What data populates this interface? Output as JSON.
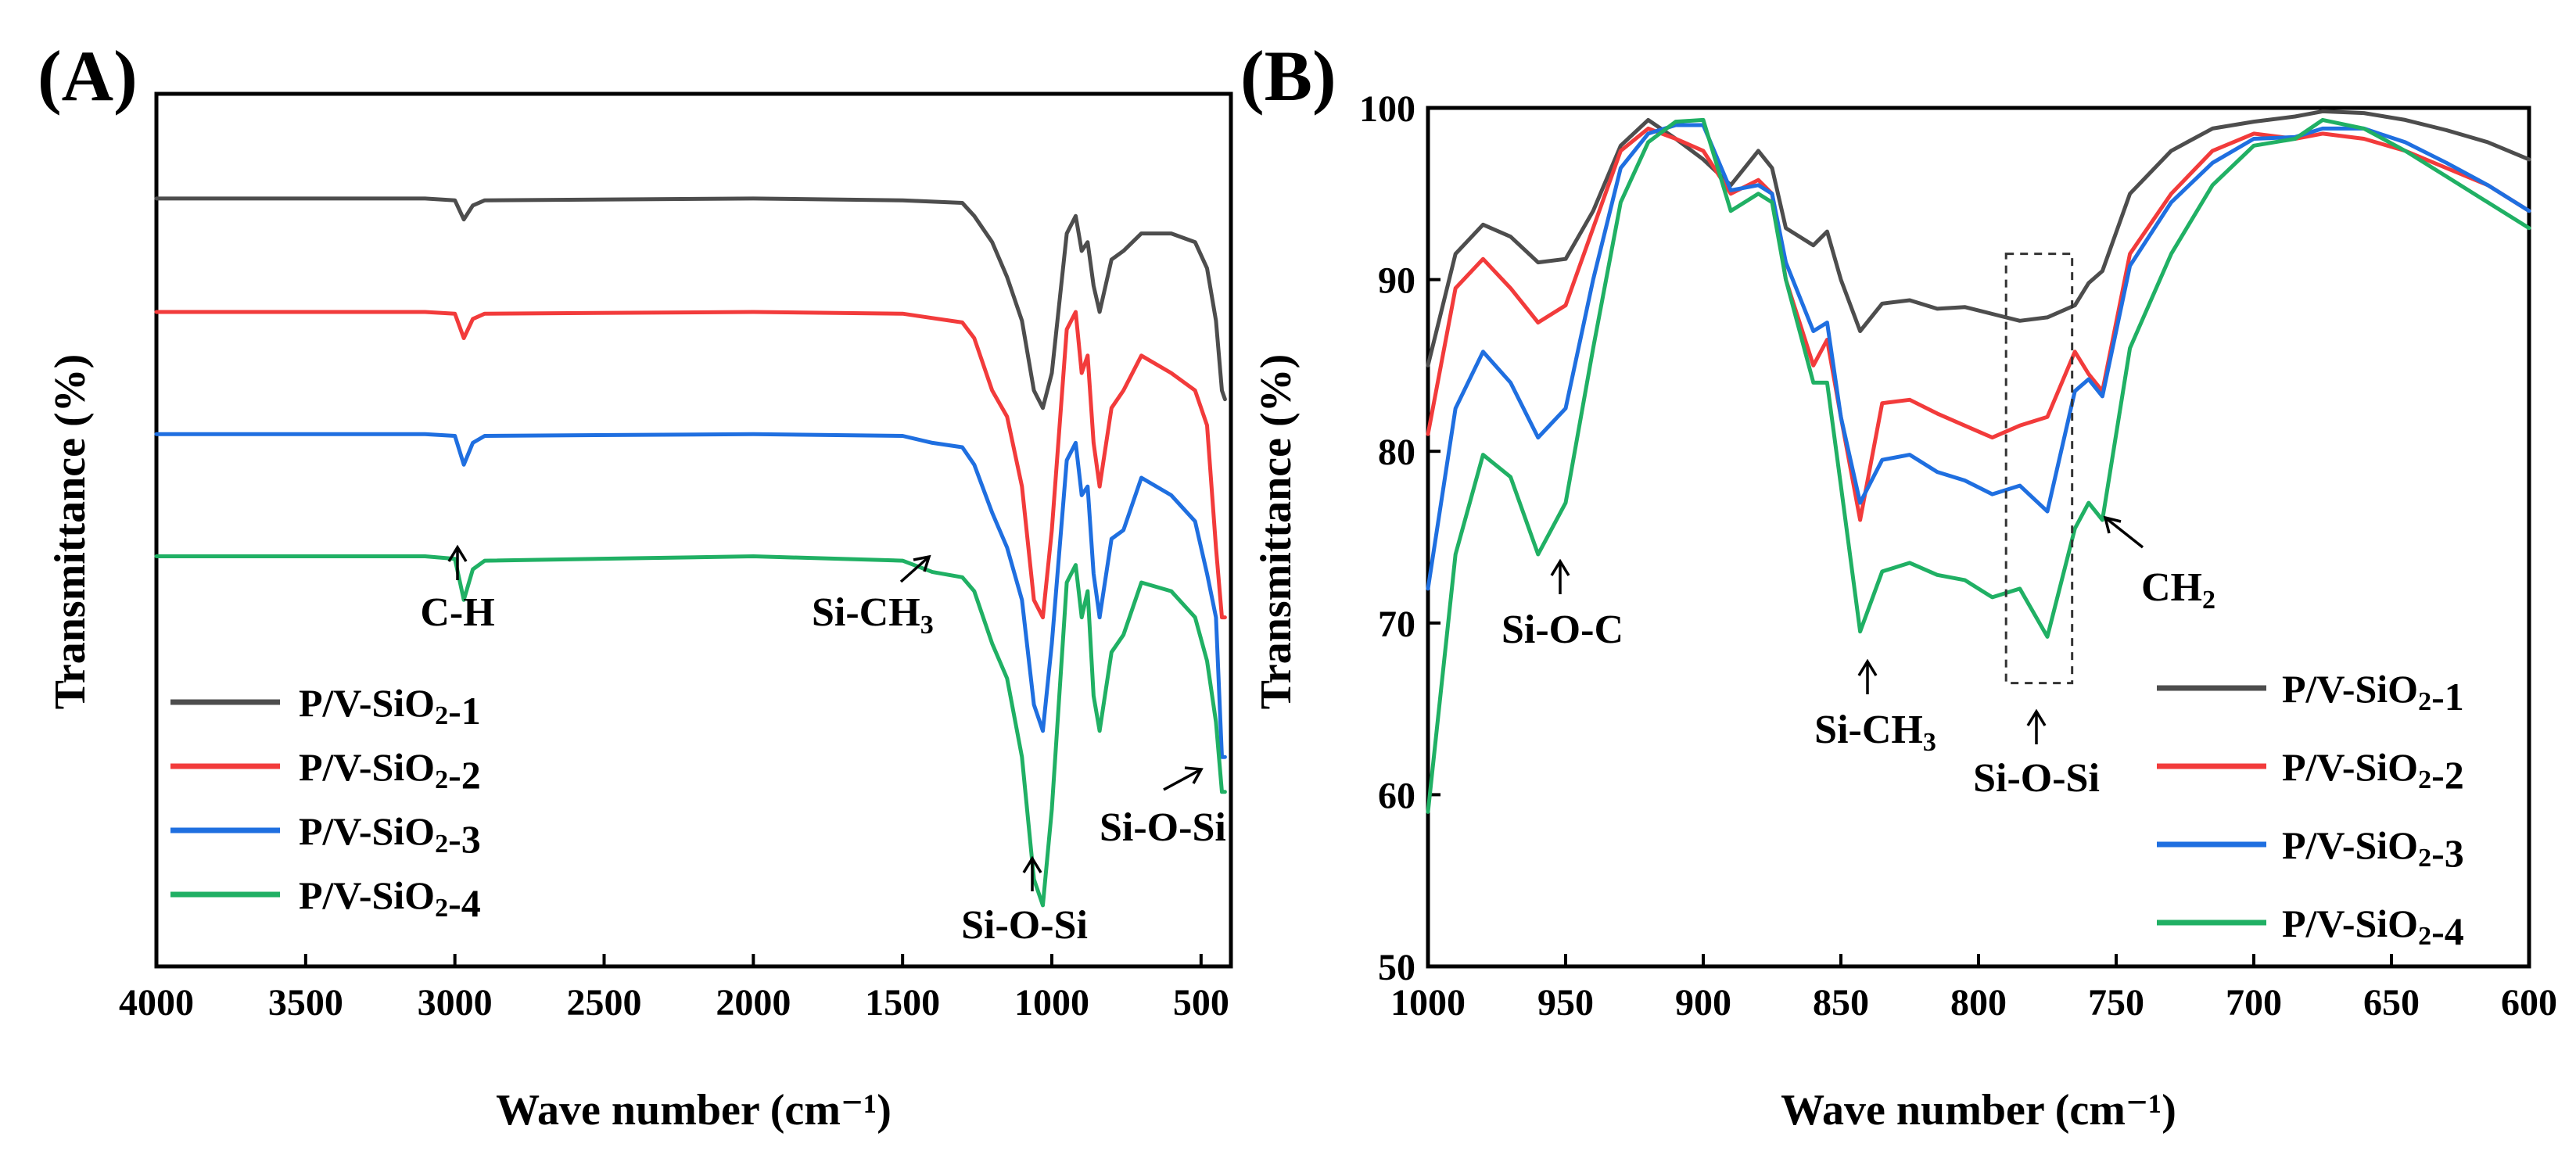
{
  "colors": {
    "P/V-SiO2-1": "#4d4d4d",
    "P/V-SiO2-2": "#f23b3b",
    "P/V-SiO2-3": "#1f6fe0",
    "P/V-SiO2-4": "#20b064"
  },
  "chart_data": [
    {
      "panel": "(A)",
      "type": "line",
      "title": "",
      "xlabel": "Wave number (cm⁻¹)",
      "ylabel": "Transmittance (%)",
      "xlim": [
        4000,
        400
      ],
      "xticks": [
        4000,
        3500,
        3000,
        2500,
        2000,
        1500,
        1000,
        500
      ],
      "yticks": [],
      "ylim": [
        0,
        100
      ],
      "legend": [
        "P/V-SiO2-1",
        "P/V-SiO2-2",
        "P/V-SiO2-3",
        "P/V-SiO2-4"
      ],
      "legend_position": "bottom-left",
      "annotations": [
        {
          "text": "C-H",
          "x": 2970
        },
        {
          "text": "Si-CH3",
          "x": 1400
        },
        {
          "text": "Si-O-Si",
          "x": 1030
        },
        {
          "text": "Si-O-Si",
          "x": 450
        }
      ],
      "series": [
        {
          "name": "P/V-SiO2-1",
          "x": [
            4000,
            3100,
            3000,
            2970,
            2940,
            2900,
            2000,
            1500,
            1300,
            1260,
            1200,
            1150,
            1100,
            1060,
            1030,
            1000,
            950,
            920,
            900,
            880,
            860,
            840,
            800,
            760,
            700,
            600,
            520,
            480,
            450,
            430,
            420
          ],
          "y": [
            88,
            88,
            87.8,
            85.6,
            87.2,
            87.8,
            88,
            87.8,
            87.5,
            86,
            83,
            79,
            74,
            66,
            64,
            68,
            84,
            86,
            82,
            83,
            78,
            75,
            81,
            82,
            84,
            84,
            83,
            80,
            74,
            66,
            65
          ]
        },
        {
          "name": "P/V-SiO2-2",
          "x": [
            4000,
            3100,
            3000,
            2970,
            2940,
            2900,
            2000,
            1500,
            1400,
            1300,
            1260,
            1200,
            1150,
            1100,
            1060,
            1030,
            1000,
            950,
            920,
            900,
            880,
            860,
            840,
            800,
            760,
            700,
            600,
            520,
            480,
            450,
            430,
            420
          ],
          "y": [
            75,
            75,
            74.8,
            72,
            74.2,
            74.8,
            75,
            74.8,
            74.3,
            73.8,
            72,
            66,
            63,
            55,
            42,
            40,
            50,
            73,
            75,
            68,
            70,
            60,
            55,
            64,
            66,
            70,
            68,
            66,
            62,
            48,
            40,
            40
          ]
        },
        {
          "name": "P/V-SiO2-3",
          "x": [
            4000,
            3100,
            3000,
            2970,
            2940,
            2900,
            2000,
            1500,
            1400,
            1300,
            1260,
            1200,
            1150,
            1100,
            1060,
            1030,
            1000,
            950,
            920,
            900,
            880,
            860,
            840,
            800,
            760,
            700,
            600,
            520,
            480,
            450,
            430,
            420
          ],
          "y": [
            61,
            61,
            60.8,
            57.5,
            60,
            60.8,
            61,
            60.8,
            60,
            59.5,
            57.5,
            52,
            48,
            42,
            30,
            27,
            37,
            58,
            60,
            54,
            55,
            45,
            40,
            49,
            50,
            56,
            54,
            51,
            45,
            40,
            24,
            24
          ]
        },
        {
          "name": "P/V-SiO2-4",
          "x": [
            4000,
            3100,
            3000,
            2970,
            2940,
            2900,
            2000,
            1500,
            1400,
            1300,
            1260,
            1200,
            1150,
            1100,
            1060,
            1030,
            1000,
            950,
            920,
            900,
            880,
            860,
            840,
            800,
            760,
            700,
            600,
            520,
            480,
            450,
            430,
            420
          ],
          "y": [
            47,
            47,
            46.7,
            42,
            45.5,
            46.5,
            47,
            46.5,
            45.2,
            44.6,
            43,
            37,
            33,
            24,
            10,
            7,
            18,
            44,
            46,
            40,
            43,
            31,
            27,
            36,
            38,
            44,
            43,
            40,
            35,
            28,
            20,
            20
          ]
        }
      ]
    },
    {
      "panel": "(B)",
      "type": "line",
      "title": "",
      "xlabel": "Wave number (cm⁻¹)",
      "ylabel": "Transmittance (%)",
      "xlim": [
        1000,
        600
      ],
      "ylim": [
        50,
        100
      ],
      "xticks": [
        1000,
        950,
        900,
        850,
        800,
        750,
        700,
        650,
        600
      ],
      "yticks": [
        50,
        60,
        70,
        80,
        90,
        100
      ],
      "legend": [
        "P/V-SiO2-1",
        "P/V-SiO2-2",
        "P/V-SiO2-3",
        "P/V-SiO2-4"
      ],
      "legend_position": "bottom-right",
      "annotations": [
        {
          "text": "Si-O-C",
          "x": 958
        },
        {
          "text": "Si-CH3",
          "x": 843
        },
        {
          "text": "Si-O-Si",
          "x": 778
        },
        {
          "text": "CH2",
          "x": 757
        }
      ],
      "highlight_box": {
        "x_range": [
          790,
          766
        ],
        "y_range": [
          66.5,
          91.5
        ]
      },
      "series": [
        {
          "name": "P/V-SiO2-1",
          "x": [
            1000,
            990,
            980,
            970,
            960,
            950,
            940,
            930,
            920,
            910,
            900,
            890,
            880,
            875,
            870,
            860,
            855,
            850,
            843,
            835,
            825,
            815,
            805,
            795,
            785,
            775,
            765,
            760,
            755,
            745,
            730,
            715,
            700,
            685,
            675,
            660,
            645,
            630,
            615,
            600
          ],
          "y": [
            85,
            91.5,
            93.2,
            92.5,
            91,
            91.2,
            94,
            97.8,
            99.3,
            98.2,
            97,
            95.5,
            97.5,
            96.5,
            93,
            92,
            92.8,
            90,
            87,
            88.6,
            88.8,
            88.3,
            88.4,
            88,
            87.6,
            87.8,
            88.5,
            89.8,
            90.5,
            95,
            97.5,
            98.8,
            99.2,
            99.5,
            99.8,
            99.7,
            99.3,
            98.7,
            98,
            97
          ]
        },
        {
          "name": "P/V-SiO2-2",
          "x": [
            1000,
            990,
            980,
            970,
            960,
            950,
            940,
            930,
            920,
            910,
            900,
            890,
            880,
            875,
            870,
            860,
            855,
            850,
            843,
            835,
            825,
            815,
            805,
            795,
            785,
            775,
            765,
            760,
            755,
            745,
            730,
            715,
            700,
            685,
            675,
            660,
            645,
            630,
            615,
            600
          ],
          "y": [
            81,
            89.5,
            91.2,
            89.5,
            87.5,
            88.5,
            93,
            97.5,
            98.8,
            98.2,
            97.5,
            95,
            95.8,
            95,
            90,
            85,
            86.5,
            82,
            76,
            82.8,
            83,
            82.2,
            81.5,
            80.8,
            81.5,
            82,
            85.8,
            84.5,
            83.5,
            91.5,
            95,
            97.5,
            98.5,
            98.2,
            98.5,
            98.2,
            97.5,
            96.5,
            95.5,
            94
          ]
        },
        {
          "name": "P/V-SiO2-3",
          "x": [
            1000,
            990,
            980,
            970,
            960,
            950,
            940,
            930,
            920,
            910,
            900,
            890,
            880,
            875,
            870,
            860,
            855,
            850,
            843,
            835,
            825,
            815,
            805,
            795,
            785,
            775,
            765,
            760,
            755,
            745,
            730,
            715,
            700,
            685,
            675,
            660,
            645,
            630,
            615,
            600
          ],
          "y": [
            72,
            82.5,
            85.8,
            84,
            80.8,
            82.5,
            90,
            96.5,
            98.5,
            99,
            99,
            95.2,
            95.5,
            95,
            91,
            87,
            87.5,
            82,
            77,
            79.5,
            79.8,
            78.8,
            78.3,
            77.5,
            78,
            76.5,
            83.5,
            84.2,
            83.2,
            90.8,
            94.5,
            96.8,
            98.2,
            98.3,
            98.8,
            98.8,
            98,
            96.8,
            95.5,
            94
          ]
        },
        {
          "name": "P/V-SiO2-4",
          "x": [
            1000,
            990,
            980,
            970,
            960,
            950,
            940,
            930,
            920,
            910,
            900,
            890,
            880,
            875,
            870,
            860,
            855,
            850,
            843,
            835,
            825,
            815,
            805,
            795,
            785,
            775,
            765,
            760,
            755,
            745,
            730,
            715,
            700,
            685,
            675,
            660,
            645,
            630,
            615,
            600
          ],
          "y": [
            59,
            74,
            79.8,
            78.5,
            74,
            77,
            86,
            94.5,
            98,
            99.2,
            99.3,
            94,
            95,
            94.5,
            90,
            84,
            84,
            78,
            69.5,
            73,
            73.5,
            72.8,
            72.5,
            71.5,
            72,
            69.2,
            75.5,
            77,
            76,
            86,
            91.5,
            95.5,
            97.8,
            98.2,
            99.3,
            98.8,
            97.5,
            96,
            94.5,
            93
          ]
        }
      ]
    }
  ]
}
